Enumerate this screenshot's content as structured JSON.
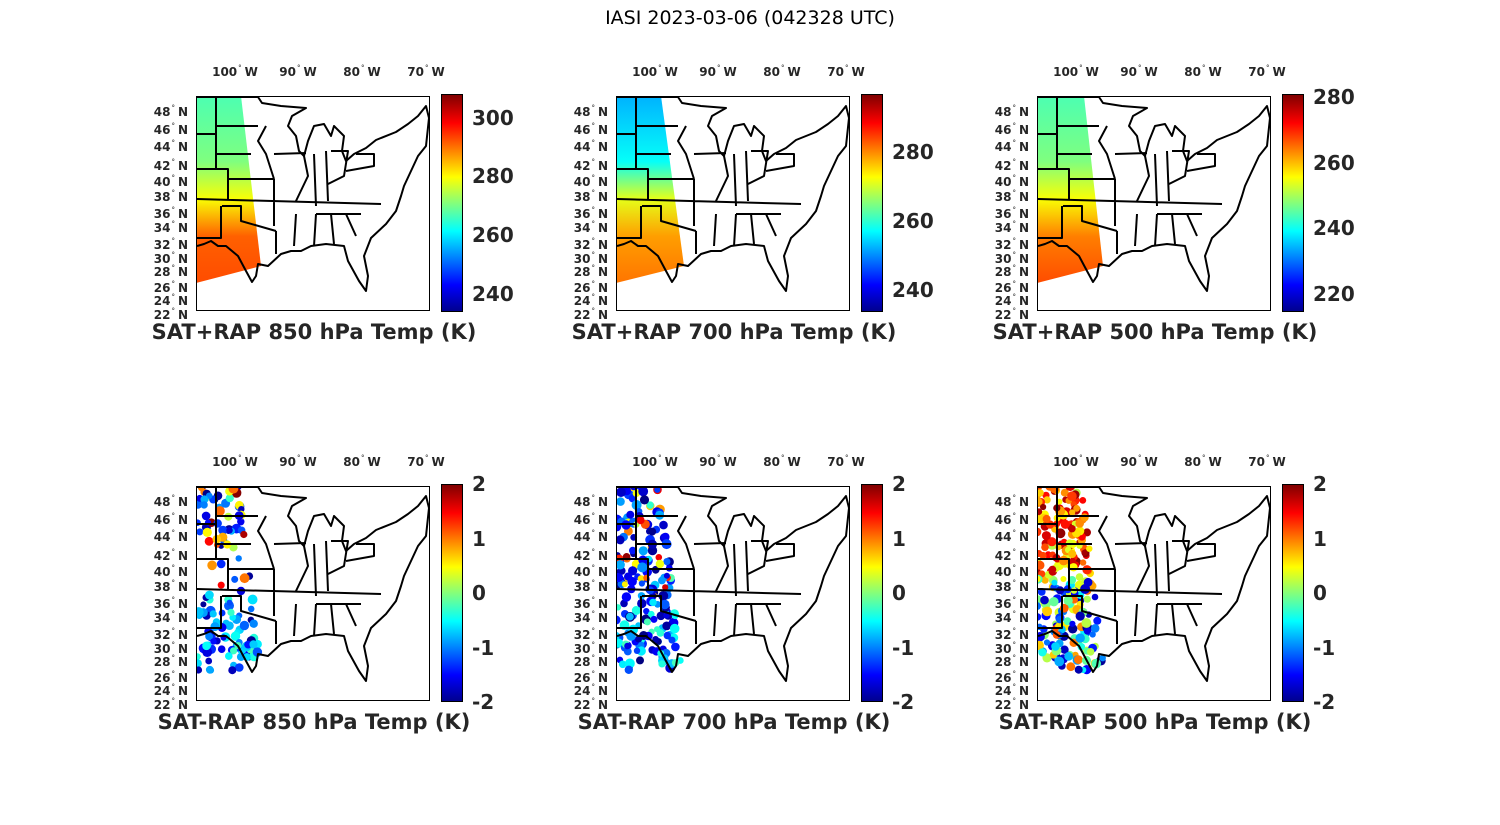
{
  "figure_title": "IASI 2023-03-06 (042328 UTC)",
  "colormap": "jet",
  "lon_labels": [
    "100",
    "90",
    "80",
    "70"
  ],
  "lon_suffix": "W",
  "lat_labels": [
    "48",
    "46",
    "44",
    "42",
    "40",
    "38",
    "36",
    "34",
    "32",
    "30",
    "28",
    "26",
    "24",
    "22"
  ],
  "lat_suffix": "N",
  "panels": [
    {
      "title": "SAT+RAP 850 hPa Temp (K)",
      "kind": "full",
      "clim": [
        234,
        308
      ],
      "ticks": [
        "240",
        "260",
        "280",
        "300"
      ]
    },
    {
      "title": "SAT+RAP 700 hPa Temp (K)",
      "kind": "full",
      "clim": [
        233.6,
        296.8
      ],
      "ticks": [
        "240",
        "260",
        "280"
      ]
    },
    {
      "title": "SAT+RAP 500 hPa Temp (K)",
      "kind": "full",
      "clim": [
        214.5,
        281
      ],
      "ticks": [
        "220",
        "240",
        "260",
        "280"
      ]
    },
    {
      "title": "SAT-RAP 850 hPa Temp (K)",
      "kind": "diff",
      "clim": [
        -2,
        2
      ],
      "ticks": [
        "-2",
        "-1",
        "0",
        "1",
        "2"
      ]
    },
    {
      "title": "SAT-RAP 700 hPa Temp (K)",
      "kind": "diff",
      "clim": [
        -2,
        2
      ],
      "ticks": [
        "-2",
        "-1",
        "0",
        "1",
        "2"
      ]
    },
    {
      "title": "SAT-RAP 500 hPa Temp (K)",
      "kind": "diff",
      "clim": [
        -2,
        2
      ],
      "ticks": [
        "-2",
        "-1",
        "0",
        "1",
        "2"
      ]
    }
  ]
}
